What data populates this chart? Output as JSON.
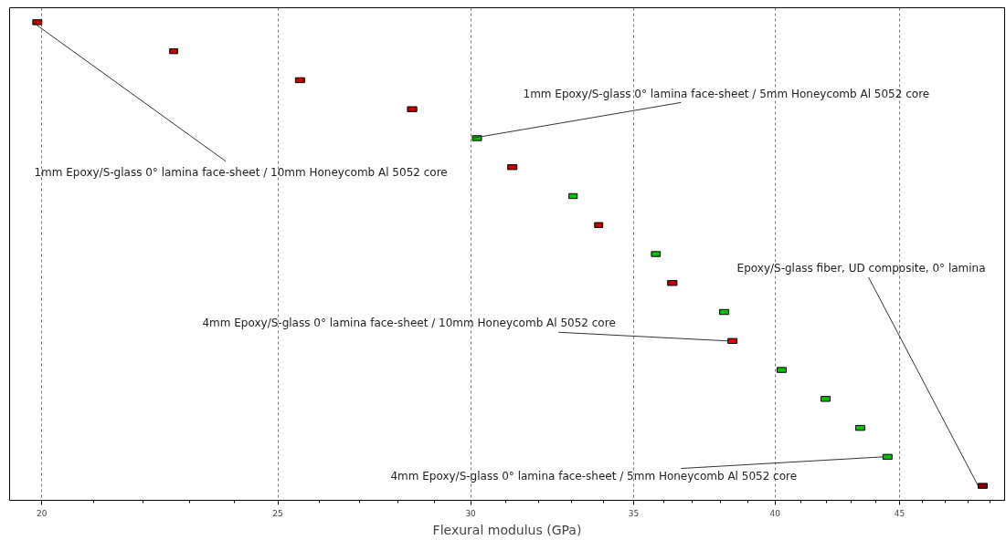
{
  "chart_data": {
    "type": "bar",
    "orientation": "horizontal",
    "xlabel": "Flexural modulus (GPa)",
    "categories": [
      null,
      null,
      null,
      null,
      null,
      null,
      null,
      null,
      null,
      null,
      null,
      null,
      null,
      null,
      null,
      null,
      null
    ],
    "base": [
      19.83,
      22.57,
      25.42,
      28.26,
      30.05,
      31.07,
      32.92,
      33.73,
      35.59,
      36.14,
      37.96,
      38.26,
      40.08,
      41.78,
      43.17,
      44.3,
      48.47
    ],
    "values": [
      0.17,
      0.17,
      0.22,
      0.25,
      0.26,
      0.27,
      0.26,
      0.26,
      0.3,
      0.32,
      0.33,
      0.33,
      0.35,
      0.36,
      0.37,
      0.38,
      0.42
    ],
    "colors": [
      "#c00000",
      "#c00000",
      "#c00000",
      "#c00000",
      "#00c000",
      "#c00000",
      "#00c000",
      "#c00000",
      "#00c000",
      "#c00000",
      "#00c000",
      "#e00000",
      "#00c000",
      "#00c000",
      "#00c000",
      "#00c000",
      "#8b0000"
    ],
    "log": "x",
    "xlim": [
      19.4,
      49.7
    ],
    "xticks": [
      20,
      25,
      30,
      35,
      40,
      45
    ],
    "grid": "x",
    "tick_labels": "x",
    "annotations": [
      "1mm Epoxy/S-glass 0° lamina face-sheet / 10mm Honeycomb Al 5052 core",
      "1mm Epoxy/S-glass 0° lamina face-sheet / 5mm Honeycomb Al 5052 core",
      "4mm Epoxy/S-glass 0° lamina face-sheet / 10mm Honeycomb Al 5052 core",
      "Epoxy/S-glass fiber, UD composite, 0° lamina",
      "4mm Epoxy/S-glass 0° lamina face-sheet / 5mm Honeycomb Al 5052 core"
    ]
  }
}
